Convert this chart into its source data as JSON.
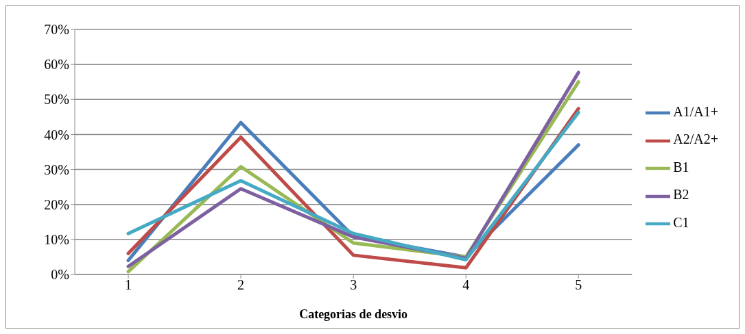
{
  "chart_data": {
    "type": "line",
    "xlabel": "Categorias de desvio",
    "categories": [
      "1",
      "2",
      "3",
      "4",
      "5"
    ],
    "series": [
      {
        "name": "A1/A1+",
        "color": "#4a7ebb",
        "values": [
          4,
          43.4,
          10.9,
          5,
          37
        ]
      },
      {
        "name": "A2/A2+",
        "color": "#be4b48",
        "values": [
          6,
          39.2,
          5.5,
          1.9,
          47.4
        ]
      },
      {
        "name": "B1",
        "color": "#98b954",
        "values": [
          0.8,
          30.8,
          9,
          5,
          55
        ]
      },
      {
        "name": "B2",
        "color": "#7d60a0",
        "values": [
          2.3,
          24.5,
          10.7,
          4.6,
          57.7
        ]
      },
      {
        "name": "C1",
        "color": "#46aac5",
        "values": [
          11.7,
          26.8,
          11.7,
          4.2,
          46.3
        ]
      }
    ],
    "ylim": [
      0,
      70
    ],
    "yticks": [
      {
        "value": 0,
        "label": "0%"
      },
      {
        "value": 10,
        "label": "10%"
      },
      {
        "value": 20,
        "label": "20%"
      },
      {
        "value": 30,
        "label": "30%"
      },
      {
        "value": 40,
        "label": "40%"
      },
      {
        "value": 50,
        "label": "50%"
      },
      {
        "value": 60,
        "label": "60%"
      },
      {
        "value": 70,
        "label": "70%"
      }
    ],
    "grid": "y",
    "legend": "right",
    "marker": "none",
    "line_style": "solid"
  }
}
